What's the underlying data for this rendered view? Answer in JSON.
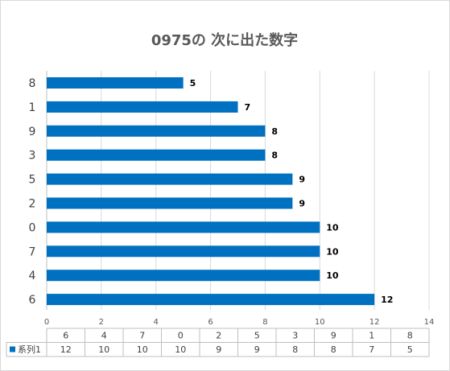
{
  "chart_data": {
    "type": "bar",
    "orientation": "horizontal",
    "title": "0975の 次に出た数字",
    "categories": [
      "8",
      "1",
      "9",
      "3",
      "5",
      "2",
      "0",
      "7",
      "4",
      "6"
    ],
    "series": [
      {
        "name": "系列1",
        "values": [
          5,
          7,
          8,
          8,
          9,
          9,
          10,
          10,
          10,
          12
        ],
        "color": "#0070c0"
      }
    ],
    "xlim": [
      0,
      14
    ],
    "xticks": [
      0,
      2,
      4,
      6,
      8,
      10,
      12,
      14
    ],
    "grid": true,
    "legend": "data-table",
    "data_table": {
      "categories": [
        "6",
        "4",
        "7",
        "0",
        "2",
        "5",
        "3",
        "9",
        "1",
        "8"
      ],
      "series_label": "系列1",
      "values": [
        "12",
        "10",
        "10",
        "10",
        "9",
        "9",
        "8",
        "8",
        "7",
        "5"
      ]
    }
  }
}
